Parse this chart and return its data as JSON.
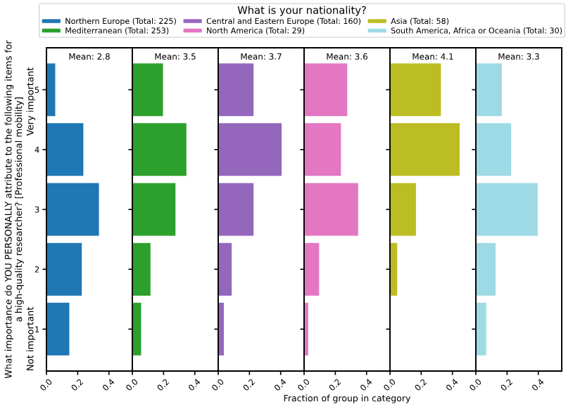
{
  "chart_data": [
    {
      "type": "bar",
      "orientation": "horizontal",
      "title": "Mean: 2.8",
      "legend_title": "What is your nationality?",
      "legend": "top",
      "ylabel": "What importance do YOU PERSONALLY attribute to the following items for\na high-quality researcher? [Professional mobility]",
      "annotations": [
        "Not important",
        "Very important"
      ],
      "categories": [
        "5",
        "4",
        "3",
        "2",
        "1"
      ],
      "xlim": [
        0,
        0.55
      ],
      "xticks": [
        {
          "value": 0,
          "label": "0.0"
        },
        {
          "value": 0.2,
          "label": "0.2"
        },
        {
          "value": 0.4,
          "label": "0.4"
        }
      ],
      "series": [
        {
          "name": "Northern Europe (Total: 225)",
          "color": "#1f77b4",
          "values": [
            0.06,
            0.24,
            0.34,
            0.23,
            0.15
          ]
        }
      ]
    },
    {
      "type": "bar",
      "orientation": "horizontal",
      "title": "Mean: 3.5",
      "tick_labels": "x",
      "categories": [
        "5",
        "4",
        "3",
        "2",
        "1"
      ],
      "xlim": [
        0,
        0.55
      ],
      "xticks": [
        {
          "value": 0,
          "label": "0.0"
        },
        {
          "value": 0.2,
          "label": "0.2"
        },
        {
          "value": 0.4,
          "label": "0.4"
        }
      ],
      "series": [
        {
          "name": "Mediterranean (Total: 253)",
          "color": "#2ca02c",
          "values": [
            0.2,
            0.35,
            0.28,
            0.12,
            0.06
          ]
        }
      ]
    },
    {
      "type": "bar",
      "orientation": "horizontal",
      "title": "Mean: 3.7",
      "tick_labels": "x",
      "categories": [
        "5",
        "4",
        "3",
        "2",
        "1"
      ],
      "xlim": [
        0,
        0.55
      ],
      "xticks": [
        {
          "value": 0,
          "label": "0.0"
        },
        {
          "value": 0.2,
          "label": "0.2"
        },
        {
          "value": 0.4,
          "label": "0.4"
        }
      ],
      "series": [
        {
          "name": "Central and Eastern Europe (Total: 160)",
          "color": "#9467bd",
          "values": [
            0.23,
            0.41,
            0.23,
            0.09,
            0.04
          ]
        }
      ]
    },
    {
      "type": "bar",
      "orientation": "horizontal",
      "title": "Mean: 3.6",
      "tick_labels": "x",
      "xlabel": "Fraction of group in category",
      "categories": [
        "5",
        "4",
        "3",
        "2",
        "1"
      ],
      "xlim": [
        0,
        0.55
      ],
      "xticks": [
        {
          "value": 0,
          "label": "0.0"
        },
        {
          "value": 0.2,
          "label": "0.2"
        },
        {
          "value": 0.4,
          "label": "0.4"
        }
      ],
      "series": [
        {
          "name": "North America (Total: 29)",
          "color": "#e377c2",
          "values": [
            0.28,
            0.24,
            0.35,
            0.1,
            0.03
          ]
        }
      ]
    },
    {
      "type": "bar",
      "orientation": "horizontal",
      "title": "Mean: 4.1",
      "tick_labels": "x",
      "categories": [
        "5",
        "4",
        "3",
        "2",
        "1"
      ],
      "xlim": [
        0,
        0.55
      ],
      "xticks": [
        {
          "value": 0,
          "label": "0.0"
        },
        {
          "value": 0.2,
          "label": "0.2"
        },
        {
          "value": 0.4,
          "label": "0.4"
        }
      ],
      "series": [
        {
          "name": "Asia (Total: 58)",
          "color": "#bcbd22",
          "values": [
            0.33,
            0.45,
            0.17,
            0.05,
            0
          ]
        }
      ]
    },
    {
      "type": "bar",
      "orientation": "horizontal",
      "title": "Mean: 3.3",
      "tick_labels": "x",
      "categories": [
        "5",
        "4",
        "3",
        "2",
        "1"
      ],
      "xlim": [
        0,
        0.55
      ],
      "xticks": [
        {
          "value": 0,
          "label": "0.0"
        },
        {
          "value": 0.2,
          "label": "0.2"
        },
        {
          "value": 0.4,
          "label": "0.4"
        }
      ],
      "series": [
        {
          "name": "South America, Africa or Oceania (Total: 30)",
          "color": "#9edae5",
          "values": [
            0.17,
            0.23,
            0.4,
            0.13,
            0.07
          ]
        }
      ]
    }
  ]
}
